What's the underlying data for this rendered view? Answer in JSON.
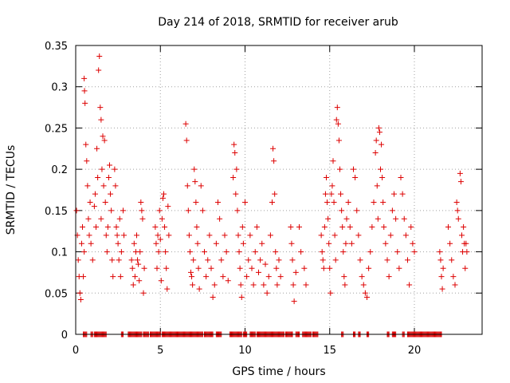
{
  "chart_data": {
    "type": "scatter",
    "title": "Day 214 of 2018, SRMTID for receiver arub",
    "xlabel": "GPS time / hours",
    "ylabel": "SRMTID / TECUs",
    "xlim": [
      0,
      24
    ],
    "ylim": [
      0,
      0.35
    ],
    "xticks": [
      0,
      5,
      10,
      15,
      20
    ],
    "xtick_labels": [
      "0",
      "5",
      "10",
      "15",
      "20"
    ],
    "yticks": [
      0,
      0.05,
      0.1,
      0.15,
      0.2,
      0.25,
      0.3,
      0.35
    ],
    "ytick_labels": [
      "0",
      "0.05",
      "0.1",
      "0.15",
      "0.2",
      "0.25",
      "0.3",
      "0.35"
    ],
    "grid": true,
    "marker": "+",
    "series": [
      {
        "name": "SRMTID",
        "color": "#dd0000",
        "points": [
          [
            0.05,
            0.15
          ],
          [
            0.1,
            0.12
          ],
          [
            0.15,
            0.09
          ],
          [
            0.2,
            0.07
          ],
          [
            0.25,
            0.05
          ],
          [
            0.3,
            0.042
          ],
          [
            0.35,
            0.11
          ],
          [
            0.4,
            0.13
          ],
          [
            0.45,
            0.07
          ],
          [
            0.5,
            0.1
          ],
          [
            0.5,
            0.31
          ],
          [
            0.52,
            0.295
          ],
          [
            0.55,
            0.28
          ],
          [
            0.6,
            0.23
          ],
          [
            0.65,
            0.21
          ],
          [
            0.7,
            0.18
          ],
          [
            0.75,
            0.14
          ],
          [
            0.8,
            0.12
          ],
          [
            0.85,
            0.16
          ],
          [
            0.9,
            0.11
          ],
          [
            1.0,
            0.09
          ],
          [
            1.1,
            0.155
          ],
          [
            1.15,
            0.17
          ],
          [
            1.2,
            0.13
          ],
          [
            1.25,
            0.225
          ],
          [
            1.3,
            0.19
          ],
          [
            1.35,
            0.32
          ],
          [
            1.4,
            0.337
          ],
          [
            1.45,
            0.275
          ],
          [
            1.5,
            0.26
          ],
          [
            1.5,
            0.14
          ],
          [
            1.55,
            0.2
          ],
          [
            1.6,
            0.24
          ],
          [
            1.65,
            0.18
          ],
          [
            1.7,
            0.235
          ],
          [
            1.75,
            0.16
          ],
          [
            1.8,
            0.12
          ],
          [
            1.85,
            0.1
          ],
          [
            1.9,
            0.13
          ],
          [
            1.95,
            0.19
          ],
          [
            2.0,
            0.205
          ],
          [
            2.05,
            0.17
          ],
          [
            2.1,
            0.15
          ],
          [
            2.15,
            0.09
          ],
          [
            2.2,
            0.07
          ],
          [
            2.3,
            0.2
          ],
          [
            2.35,
            0.18
          ],
          [
            2.4,
            0.13
          ],
          [
            2.45,
            0.12
          ],
          [
            2.5,
            0.11
          ],
          [
            2.55,
            0.09
          ],
          [
            2.6,
            0.14
          ],
          [
            2.65,
            0.07
          ],
          [
            2.7,
            0.1
          ],
          [
            2.8,
            0.15
          ],
          [
            2.85,
            0.12
          ],
          [
            3.3,
            0.09
          ],
          [
            3.35,
            0.08
          ],
          [
            3.4,
            0.06
          ],
          [
            3.45,
            0.11
          ],
          [
            3.5,
            0.07
          ],
          [
            3.55,
            0.1
          ],
          [
            3.6,
            0.12
          ],
          [
            3.65,
            0.09
          ],
          [
            3.7,
            0.085
          ],
          [
            3.75,
            0.065
          ],
          [
            3.8,
            0.1
          ],
          [
            3.85,
            0.16
          ],
          [
            3.9,
            0.15
          ],
          [
            3.95,
            0.14
          ],
          [
            4.0,
            0.05
          ],
          [
            4.05,
            0.08
          ],
          [
            4.7,
            0.13
          ],
          [
            4.75,
            0.11
          ],
          [
            4.8,
            0.08
          ],
          [
            4.85,
            0.12
          ],
          [
            4.9,
            0.1
          ],
          [
            4.95,
            0.15
          ],
          [
            5.0,
            0.115
          ],
          [
            5.05,
            0.065
          ],
          [
            5.1,
            0.14
          ],
          [
            5.15,
            0.165
          ],
          [
            5.2,
            0.17
          ],
          [
            5.25,
            0.13
          ],
          [
            5.3,
            0.1
          ],
          [
            5.35,
            0.08
          ],
          [
            5.4,
            0.055
          ],
          [
            5.45,
            0.155
          ],
          [
            5.5,
            0.12
          ],
          [
            6.5,
            0.255
          ],
          [
            6.55,
            0.235
          ],
          [
            6.6,
            0.18
          ],
          [
            6.65,
            0.15
          ],
          [
            6.7,
            0.12
          ],
          [
            6.75,
            0.1
          ],
          [
            6.8,
            0.075
          ],
          [
            6.85,
            0.07
          ],
          [
            6.9,
            0.06
          ],
          [
            6.95,
            0.09
          ],
          [
            7.0,
            0.2
          ],
          [
            7.05,
            0.185
          ],
          [
            7.1,
            0.16
          ],
          [
            7.15,
            0.13
          ],
          [
            7.2,
            0.11
          ],
          [
            7.25,
            0.08
          ],
          [
            7.3,
            0.055
          ],
          [
            7.4,
            0.18
          ],
          [
            7.5,
            0.15
          ],
          [
            7.6,
            0.1
          ],
          [
            7.7,
            0.07
          ],
          [
            7.8,
            0.09
          ],
          [
            7.9,
            0.12
          ],
          [
            8.0,
            0.08
          ],
          [
            8.1,
            0.045
          ],
          [
            8.2,
            0.06
          ],
          [
            8.3,
            0.11
          ],
          [
            8.4,
            0.16
          ],
          [
            8.5,
            0.14
          ],
          [
            8.6,
            0.09
          ],
          [
            8.7,
            0.07
          ],
          [
            8.8,
            0.12
          ],
          [
            8.9,
            0.1
          ],
          [
            9.0,
            0.065
          ],
          [
            9.3,
            0.19
          ],
          [
            9.35,
            0.23
          ],
          [
            9.4,
            0.22
          ],
          [
            9.45,
            0.17
          ],
          [
            9.5,
            0.2
          ],
          [
            9.55,
            0.15
          ],
          [
            9.6,
            0.12
          ],
          [
            9.65,
            0.1
          ],
          [
            9.7,
            0.08
          ],
          [
            9.75,
            0.06
          ],
          [
            9.8,
            0.045
          ],
          [
            9.85,
            0.13
          ],
          [
            9.9,
            0.11
          ],
          [
            10.0,
            0.16
          ],
          [
            10.1,
            0.07
          ],
          [
            10.2,
            0.09
          ],
          [
            10.3,
            0.12
          ],
          [
            10.4,
            0.08
          ],
          [
            10.5,
            0.06
          ],
          [
            10.6,
            0.1
          ],
          [
            10.7,
            0.13
          ],
          [
            10.8,
            0.075
          ],
          [
            10.9,
            0.09
          ],
          [
            11.0,
            0.11
          ],
          [
            11.1,
            0.06
          ],
          [
            11.2,
            0.085
          ],
          [
            11.3,
            0.05
          ],
          [
            11.4,
            0.07
          ],
          [
            11.5,
            0.12
          ],
          [
            11.6,
            0.16
          ],
          [
            11.65,
            0.225
          ],
          [
            11.7,
            0.21
          ],
          [
            11.75,
            0.17
          ],
          [
            11.8,
            0.1
          ],
          [
            11.85,
            0.08
          ],
          [
            11.9,
            0.06
          ],
          [
            12.0,
            0.09
          ],
          [
            12.1,
            0.07
          ],
          [
            12.7,
            0.13
          ],
          [
            12.75,
            0.11
          ],
          [
            12.8,
            0.09
          ],
          [
            12.85,
            0.06
          ],
          [
            12.9,
            0.04
          ],
          [
            13.0,
            0.075
          ],
          [
            13.2,
            0.13
          ],
          [
            13.3,
            0.1
          ],
          [
            13.5,
            0.08
          ],
          [
            13.6,
            0.06
          ],
          [
            14.5,
            0.12
          ],
          [
            14.55,
            0.1
          ],
          [
            14.6,
            0.09
          ],
          [
            14.65,
            0.08
          ],
          [
            14.7,
            0.13
          ],
          [
            14.75,
            0.17
          ],
          [
            14.8,
            0.19
          ],
          [
            14.85,
            0.16
          ],
          [
            14.9,
            0.14
          ],
          [
            14.95,
            0.11
          ],
          [
            15.0,
            0.08
          ],
          [
            15.05,
            0.05
          ],
          [
            15.1,
            0.17
          ],
          [
            15.15,
            0.18
          ],
          [
            15.2,
            0.21
          ],
          [
            15.25,
            0.16
          ],
          [
            15.3,
            0.12
          ],
          [
            15.35,
            0.09
          ],
          [
            15.4,
            0.26
          ],
          [
            15.45,
            0.275
          ],
          [
            15.5,
            0.255
          ],
          [
            15.55,
            0.235
          ],
          [
            15.6,
            0.2
          ],
          [
            15.65,
            0.17
          ],
          [
            15.7,
            0.15
          ],
          [
            15.75,
            0.13
          ],
          [
            15.8,
            0.1
          ],
          [
            15.85,
            0.07
          ],
          [
            15.9,
            0.06
          ],
          [
            15.95,
            0.11
          ],
          [
            16.0,
            0.14
          ],
          [
            16.1,
            0.16
          ],
          [
            16.2,
            0.13
          ],
          [
            16.3,
            0.11
          ],
          [
            16.4,
            0.2
          ],
          [
            16.5,
            0.19
          ],
          [
            16.6,
            0.15
          ],
          [
            16.7,
            0.12
          ],
          [
            16.8,
            0.09
          ],
          [
            16.9,
            0.07
          ],
          [
            17.0,
            0.06
          ],
          [
            17.1,
            0.05
          ],
          [
            17.2,
            0.045
          ],
          [
            17.3,
            0.08
          ],
          [
            17.4,
            0.1
          ],
          [
            17.5,
            0.13
          ],
          [
            17.6,
            0.16
          ],
          [
            17.7,
            0.22
          ],
          [
            17.75,
            0.235
          ],
          [
            17.8,
            0.18
          ],
          [
            17.85,
            0.14
          ],
          [
            17.9,
            0.25
          ],
          [
            17.95,
            0.245
          ],
          [
            18.0,
            0.2
          ],
          [
            18.05,
            0.23
          ],
          [
            18.1,
            0.19
          ],
          [
            18.15,
            0.16
          ],
          [
            18.2,
            0.13
          ],
          [
            18.3,
            0.11
          ],
          [
            18.4,
            0.09
          ],
          [
            18.5,
            0.07
          ],
          [
            18.6,
            0.12
          ],
          [
            18.7,
            0.15
          ],
          [
            18.8,
            0.17
          ],
          [
            18.9,
            0.14
          ],
          [
            19.0,
            0.1
          ],
          [
            19.1,
            0.08
          ],
          [
            19.2,
            0.19
          ],
          [
            19.3,
            0.17
          ],
          [
            19.4,
            0.14
          ],
          [
            19.5,
            0.12
          ],
          [
            19.6,
            0.09
          ],
          [
            19.7,
            0.06
          ],
          [
            19.8,
            0.13
          ],
          [
            19.9,
            0.11
          ],
          [
            20.0,
            0.1
          ],
          [
            21.5,
            0.1
          ],
          [
            21.55,
            0.09
          ],
          [
            21.6,
            0.07
          ],
          [
            21.65,
            0.055
          ],
          [
            21.7,
            0.08
          ],
          [
            22.0,
            0.13
          ],
          [
            22.1,
            0.11
          ],
          [
            22.2,
            0.09
          ],
          [
            22.3,
            0.07
          ],
          [
            22.4,
            0.06
          ],
          [
            22.5,
            0.16
          ],
          [
            22.55,
            0.15
          ],
          [
            22.6,
            0.14
          ],
          [
            22.7,
            0.195
          ],
          [
            22.75,
            0.185
          ],
          [
            22.8,
            0.12
          ],
          [
            22.85,
            0.1
          ],
          [
            22.9,
            0.13
          ],
          [
            22.95,
            0.11
          ],
          [
            23.0,
            0.08
          ],
          [
            23.05,
            0.11
          ],
          [
            23.1,
            0.1
          ]
        ]
      }
    ],
    "zero_line_ranges": [
      [
        0.45,
        0.65
      ],
      [
        0.9,
        1.0
      ],
      [
        1.1,
        1.8
      ],
      [
        2.7,
        2.8
      ],
      [
        3.1,
        3.9
      ],
      [
        4.0,
        4.3
      ],
      [
        4.4,
        5.0
      ],
      [
        5.1,
        7.5
      ],
      [
        7.6,
        8.1
      ],
      [
        8.3,
        8.6
      ],
      [
        9.1,
        9.8
      ],
      [
        9.9,
        10.1
      ],
      [
        10.3,
        10.6
      ],
      [
        10.7,
        12.3
      ],
      [
        12.4,
        12.8
      ],
      [
        13.0,
        13.2
      ],
      [
        13.4,
        13.9
      ],
      [
        14.0,
        14.3
      ],
      [
        15.7,
        15.8
      ],
      [
        16.4,
        16.5
      ],
      [
        16.7,
        16.8
      ],
      [
        17.2,
        17.3
      ],
      [
        18.4,
        18.5
      ],
      [
        18.7,
        18.9
      ],
      [
        19.3,
        19.4
      ],
      [
        19.6,
        21.6
      ]
    ]
  }
}
